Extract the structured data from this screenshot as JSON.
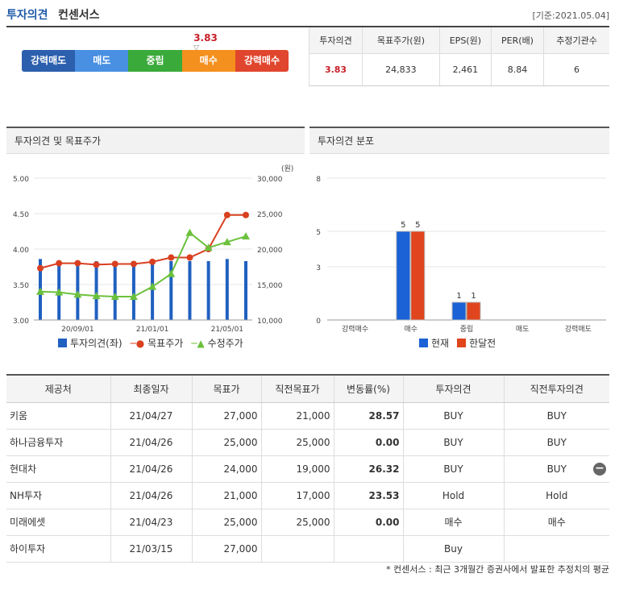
{
  "header": {
    "title_main": "투자의견",
    "title_sub": "컨센서스",
    "date": "[기준:2021.05.04]"
  },
  "gauge": {
    "value": "3.83",
    "segments": [
      {
        "label": "강력매도",
        "color": "#2c5fad"
      },
      {
        "label": "매도",
        "color": "#4a90e2"
      },
      {
        "label": "중립",
        "color": "#3aaa3a"
      },
      {
        "label": "매수",
        "color": "#f4901e"
      },
      {
        "label": "강력매수",
        "color": "#e0452d"
      }
    ]
  },
  "summary": {
    "headers": [
      "투자의견",
      "목표주가(원)",
      "EPS(원)",
      "PER(배)",
      "추정기관수"
    ],
    "values": [
      "3.83",
      "24,833",
      "2,461",
      "8.84",
      "6"
    ]
  },
  "panels": {
    "left_title": "투자의견 및 목표주가",
    "right_title": "투자의견 분포"
  },
  "chart_data": [
    {
      "type": "line",
      "y_left": {
        "ticks": [
          "5.00",
          "4.50",
          "4.00",
          "3.50",
          "3.00"
        ],
        "range": [
          3.0,
          5.0
        ]
      },
      "y_right": {
        "unit": "(원)",
        "ticks": [
          "30,000",
          "25,000",
          "20,000",
          "15,000",
          "10,000"
        ],
        "range": [
          10000,
          30000
        ]
      },
      "x_labels": [
        "20/09/01",
        "21/01/01",
        "21/05/01"
      ],
      "series": [
        {
          "name": "투자의견(좌)",
          "kind": "bar",
          "color": "#2060c0",
          "values": [
            3.86,
            3.83,
            3.83,
            3.83,
            3.83,
            3.83,
            3.83,
            3.83,
            3.83,
            3.83,
            3.86,
            3.83
          ]
        },
        {
          "name": "목표주가",
          "kind": "line",
          "color": "#d94020",
          "values": [
            17300,
            18000,
            18000,
            17800,
            17900,
            17900,
            18200,
            18800,
            18800,
            20000,
            24800,
            24800
          ]
        },
        {
          "name": "수정주가",
          "kind": "line",
          "color": "#6cc13c",
          "values": [
            14000,
            13900,
            13600,
            13400,
            13300,
            13300,
            14700,
            16500,
            22300,
            20200,
            21000,
            21800
          ]
        }
      ]
    },
    {
      "type": "bar",
      "categories": [
        "강력매수",
        "매수",
        "중립",
        "매도",
        "강력매도"
      ],
      "y_ticks": [
        "8",
        "5",
        "3",
        "0"
      ],
      "ylim": [
        0,
        8
      ],
      "series": [
        {
          "name": "현재",
          "color": "#1a62d6",
          "values": [
            0,
            5,
            1,
            0,
            0
          ]
        },
        {
          "name": "한달전",
          "color": "#e0451e",
          "values": [
            0,
            5,
            1,
            0,
            0
          ]
        }
      ]
    }
  ],
  "detail": {
    "headers": [
      "제공처",
      "최종일자",
      "목표가",
      "직전목표가",
      "변동률(%)",
      "투자의견",
      "직전투자의견"
    ],
    "rows": [
      [
        "키움",
        "21/04/27",
        "27,000",
        "21,000",
        "28.57",
        "BUY",
        "BUY"
      ],
      [
        "하나금융투자",
        "21/04/26",
        "25,000",
        "25,000",
        "0.00",
        "BUY",
        "BUY"
      ],
      [
        "현대차",
        "21/04/26",
        "24,000",
        "19,000",
        "26.32",
        "BUY",
        "BUY"
      ],
      [
        "NH투자",
        "21/04/26",
        "21,000",
        "17,000",
        "23.53",
        "Hold",
        "Hold"
      ],
      [
        "미래에셋",
        "21/04/23",
        "25,000",
        "25,000",
        "0.00",
        "매수",
        "매수"
      ],
      [
        "하이투자",
        "21/03/15",
        "27,000",
        "",
        "",
        "Buy",
        ""
      ]
    ]
  },
  "footnote": "* 컨센서스 : 최근 3개월간 증권사에서 발표한 추정치의 평균"
}
